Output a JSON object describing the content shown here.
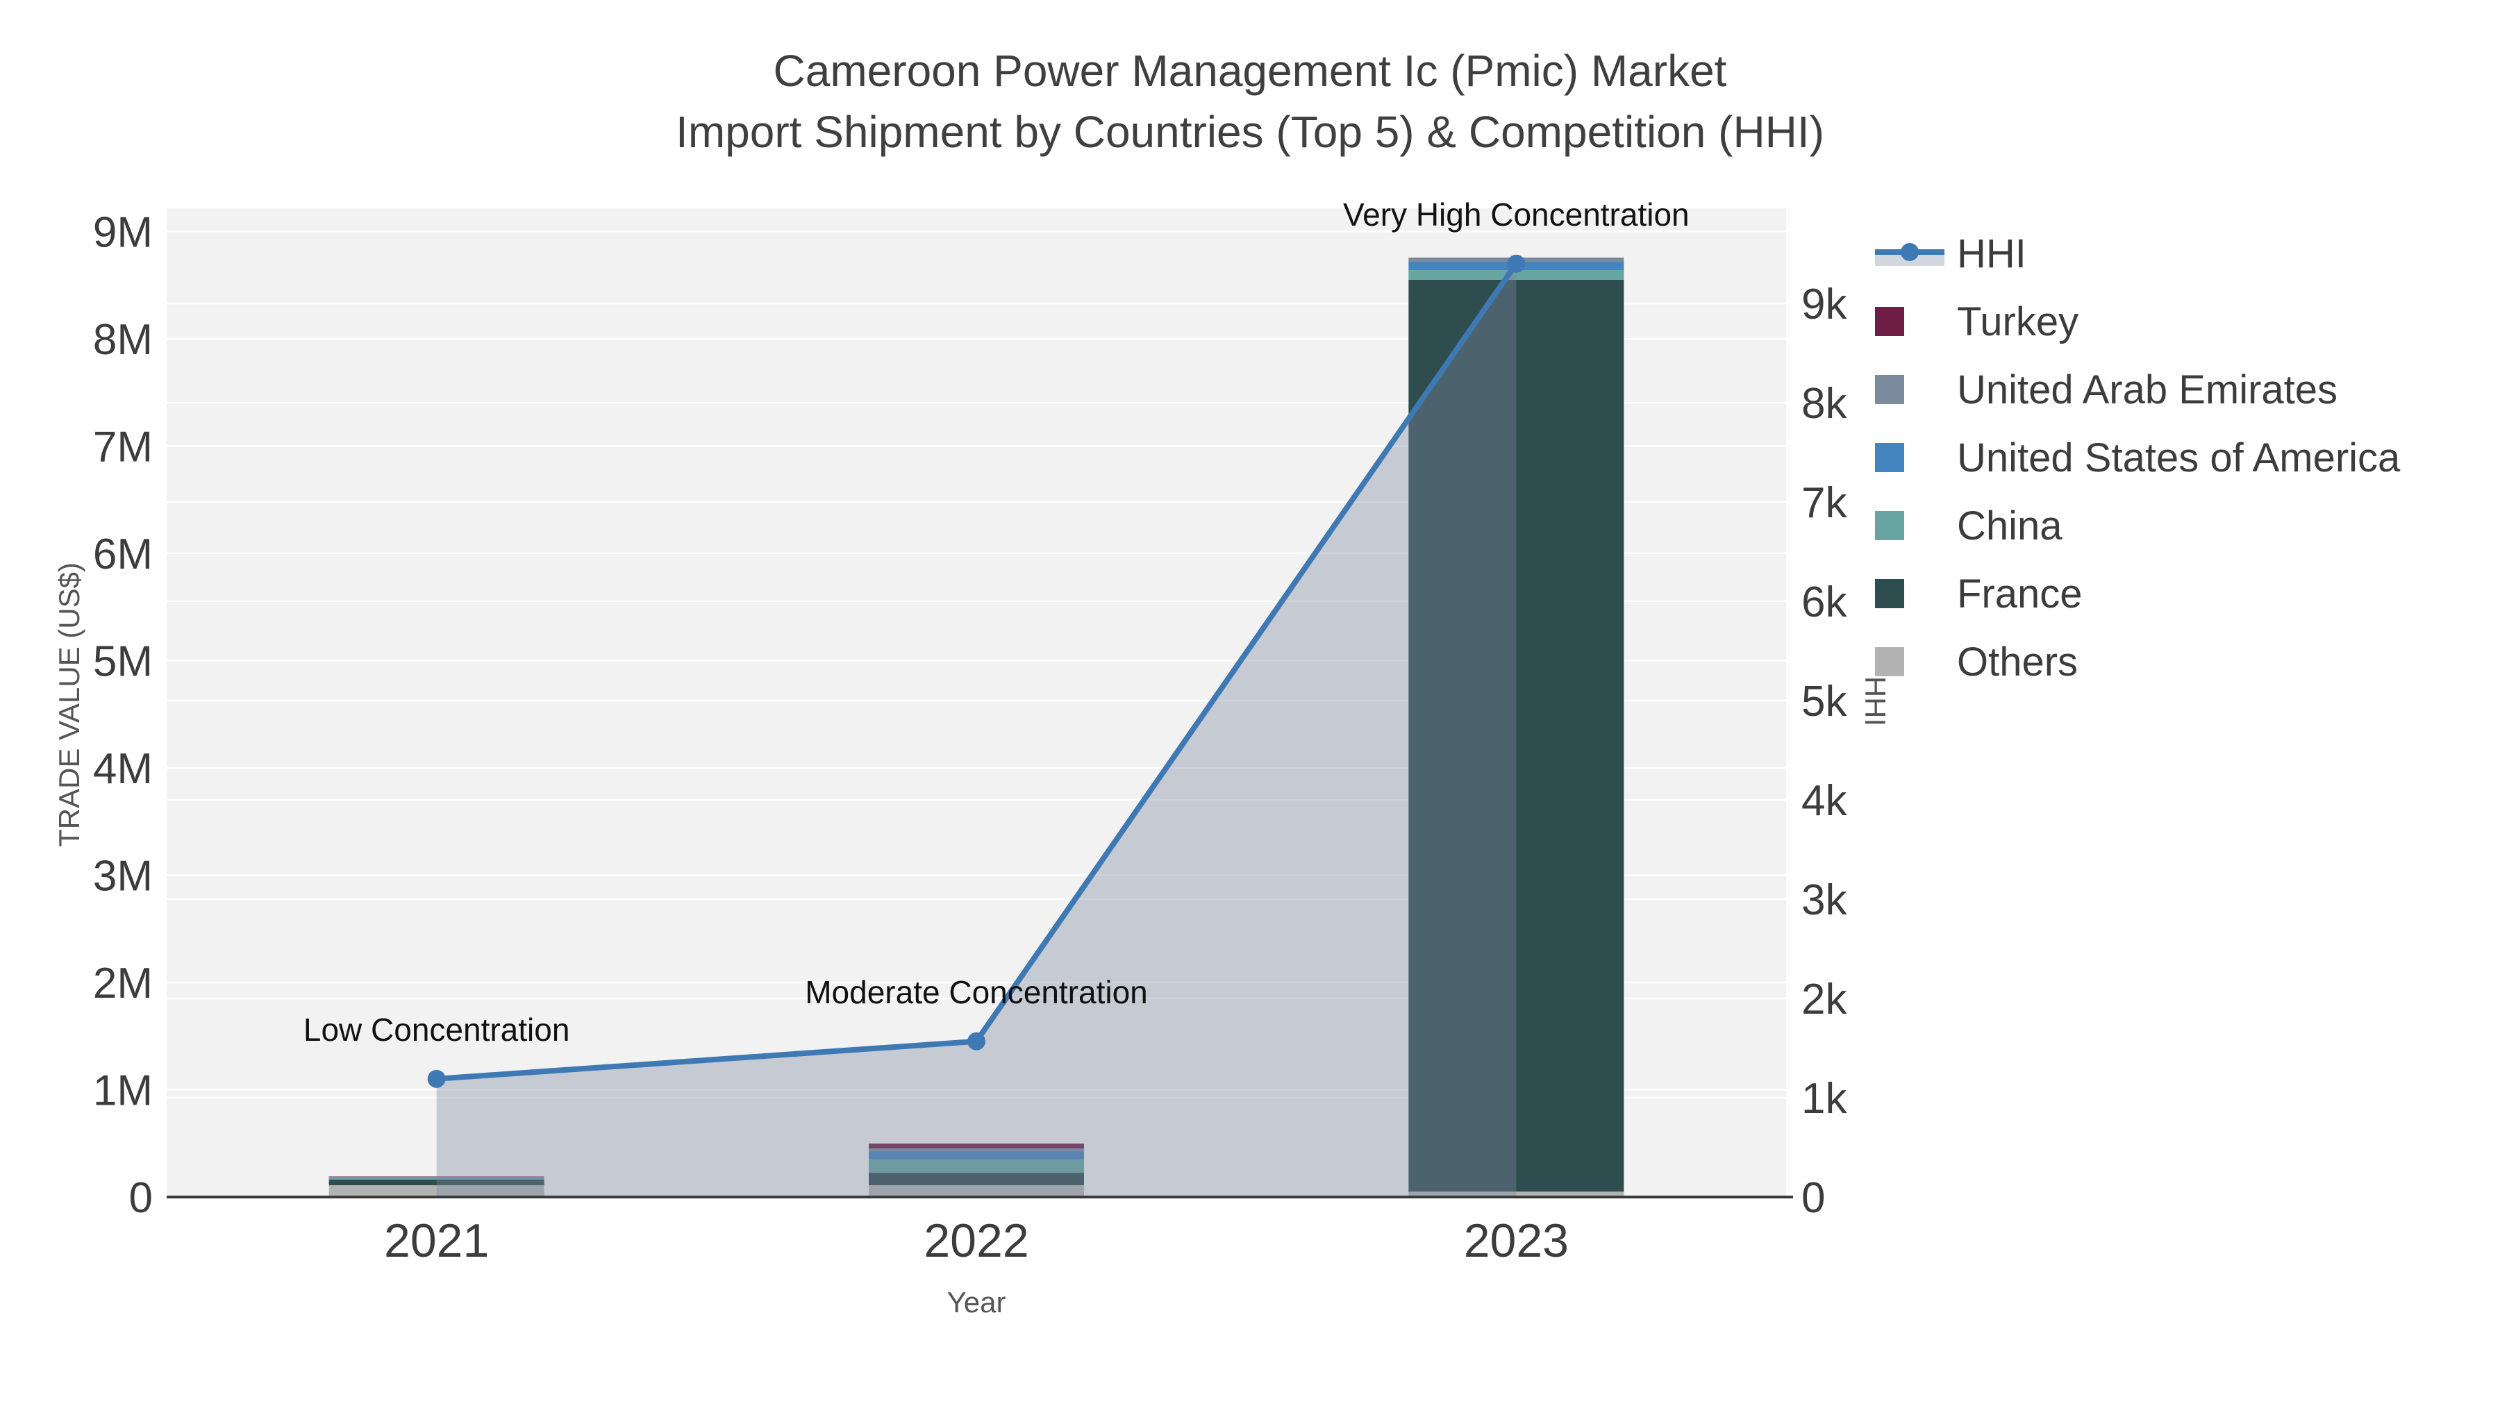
{
  "title": {
    "line1": "Cameroon Power Management Ic (Pmic) Market",
    "line2": "Import Shipment by Countries (Top 5) & Competition (HHI)"
  },
  "colors": {
    "page_background": "#ffffff",
    "plot_background": "#f2f2f2",
    "gridline": "#ffffff",
    "axis_line": "#3a3a3a",
    "tick_text": "#3c3c3c",
    "hhi_line": "#3e79b4",
    "hhi_area_fill": "rgba(126,138,160,0.38)",
    "legend_band": "#d2d7df"
  },
  "chart_data": {
    "type": "bar",
    "subtype": "stacked-bars-with-line-area-dual-axis",
    "title": "Cameroon Power Management Ic (Pmic) Market Import Shipment by Countries (Top 5) & Competition (HHI)",
    "xlabel": "Year",
    "ylabel": "TRADE VALUE (US$)",
    "y2label": "HHI",
    "categories": [
      "2021",
      "2022",
      "2023"
    ],
    "series": [
      {
        "name": "Turkey",
        "color": "#6e1e45",
        "values": [
          5000,
          45000,
          0
        ]
      },
      {
        "name": "United Arab Emirates",
        "color": "#7b8a9d",
        "values": [
          3000,
          26000,
          39000
        ]
      },
      {
        "name": "United States of America",
        "color": "#4484bf",
        "values": [
          6000,
          78000,
          78000
        ]
      },
      {
        "name": "China",
        "color": "#66a5a1",
        "values": [
          15000,
          123000,
          90000
        ]
      },
      {
        "name": "France",
        "color": "#2e4d4e",
        "values": [
          52000,
          116000,
          8500000
        ]
      },
      {
        "name": "Others",
        "color": "#b3b3b3",
        "values": [
          110000,
          110000,
          50000
        ]
      }
    ],
    "stack_order_bottom_to_top": [
      "Others",
      "France",
      "China",
      "United States of America",
      "United Arab Emirates",
      "Turkey"
    ],
    "bar_totals": [
      191000,
      498000,
      8757000
    ],
    "line_series": {
      "name": "HHI",
      "color": "#3e79b4",
      "fill": "tozeroy",
      "fill_color": "rgba(126,138,160,0.38)",
      "values": [
        1190,
        1568,
        9400
      ]
    },
    "annotations": [
      {
        "category": "2021",
        "text": "Low Concentration"
      },
      {
        "category": "2022",
        "text": "Moderate Concentration"
      },
      {
        "category": "2023",
        "text": "Very High Concentration"
      }
    ],
    "axes": {
      "x": {
        "title": "Year",
        "ticks": [
          "2021",
          "2022",
          "2023"
        ]
      },
      "y_left": {
        "title": "TRADE VALUE (US$)",
        "tick_labels": [
          "0",
          "1M",
          "2M",
          "3M",
          "4M",
          "5M",
          "6M",
          "7M",
          "8M",
          "9M"
        ],
        "tick_values": [
          0,
          1000000,
          2000000,
          3000000,
          4000000,
          5000000,
          6000000,
          7000000,
          8000000,
          9000000
        ],
        "range": [
          0,
          9216000
        ]
      },
      "y_right": {
        "title": "HHI",
        "tick_labels": [
          "0",
          "1k",
          "2k",
          "3k",
          "4k",
          "5k",
          "6k",
          "7k",
          "8k",
          "9k"
        ],
        "tick_values": [
          0,
          1000,
          2000,
          3000,
          4000,
          5000,
          6000,
          7000,
          8000,
          9000
        ],
        "range": [
          0,
          9958
        ]
      }
    },
    "legend": {
      "position": "top-right",
      "items": [
        {
          "label": "HHI",
          "type": "line",
          "color": "#3e79b4"
        },
        {
          "label": "Turkey",
          "type": "square",
          "color": "#6e1e45"
        },
        {
          "label": "United Arab Emirates",
          "type": "square",
          "color": "#7b8a9d"
        },
        {
          "label": "United States of America",
          "type": "square",
          "color": "#4484bf"
        },
        {
          "label": "China",
          "type": "square",
          "color": "#66a5a1"
        },
        {
          "label": "France",
          "type": "square",
          "color": "#2e4d4e"
        },
        {
          "label": "Others",
          "type": "square",
          "color": "#b3b3b3"
        }
      ]
    }
  }
}
